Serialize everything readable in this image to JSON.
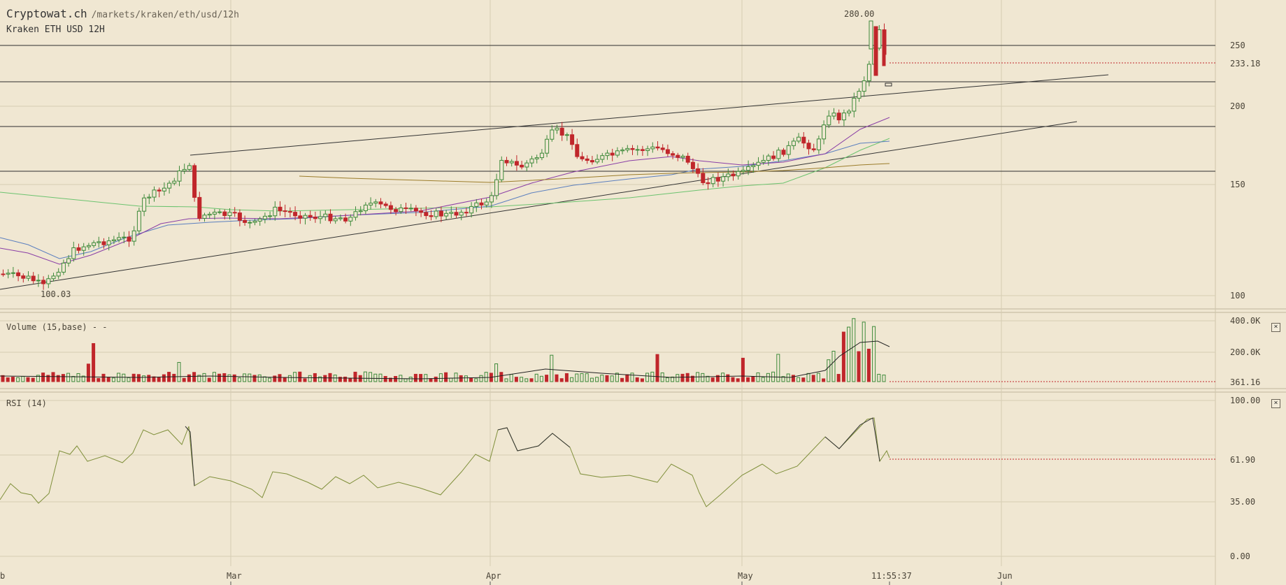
{
  "header": {
    "brand": "Cryptowat.ch",
    "path": "/markets/kraken/eth/usd/12h",
    "market_label": "Kraken ETH USD 12H"
  },
  "colors": {
    "background": "#f0e7d2",
    "grid": "#d9d0b9",
    "up": "#3e8a3a",
    "down": "#c0262b",
    "ema_purple": "#8a3ea6",
    "ema_blue": "#5b7fbf",
    "ema_green": "#6cc36f",
    "ema_olive": "#9b7c2a",
    "rsi_line": "#7f8f3a",
    "trendline": "#333333"
  },
  "price_axis": {
    "ticks": [
      "250",
      "200",
      "150",
      "100"
    ],
    "current_price": "233.18",
    "high_label": "280.00",
    "low_label": "100.03"
  },
  "time_axis": {
    "ticks": [
      "Mar",
      "Apr",
      "May",
      "Jun"
    ],
    "left_edge_label": "b",
    "clock": "11:55:37"
  },
  "volume_pane": {
    "label": "Volume (15,base) - -",
    "ticks": [
      "400.0K",
      "200.0K"
    ],
    "current": "361.16"
  },
  "rsi_pane": {
    "label": "RSI (14)",
    "ticks": [
      "100.00",
      "35.00",
      "0.00"
    ],
    "current": "61.90"
  }
}
